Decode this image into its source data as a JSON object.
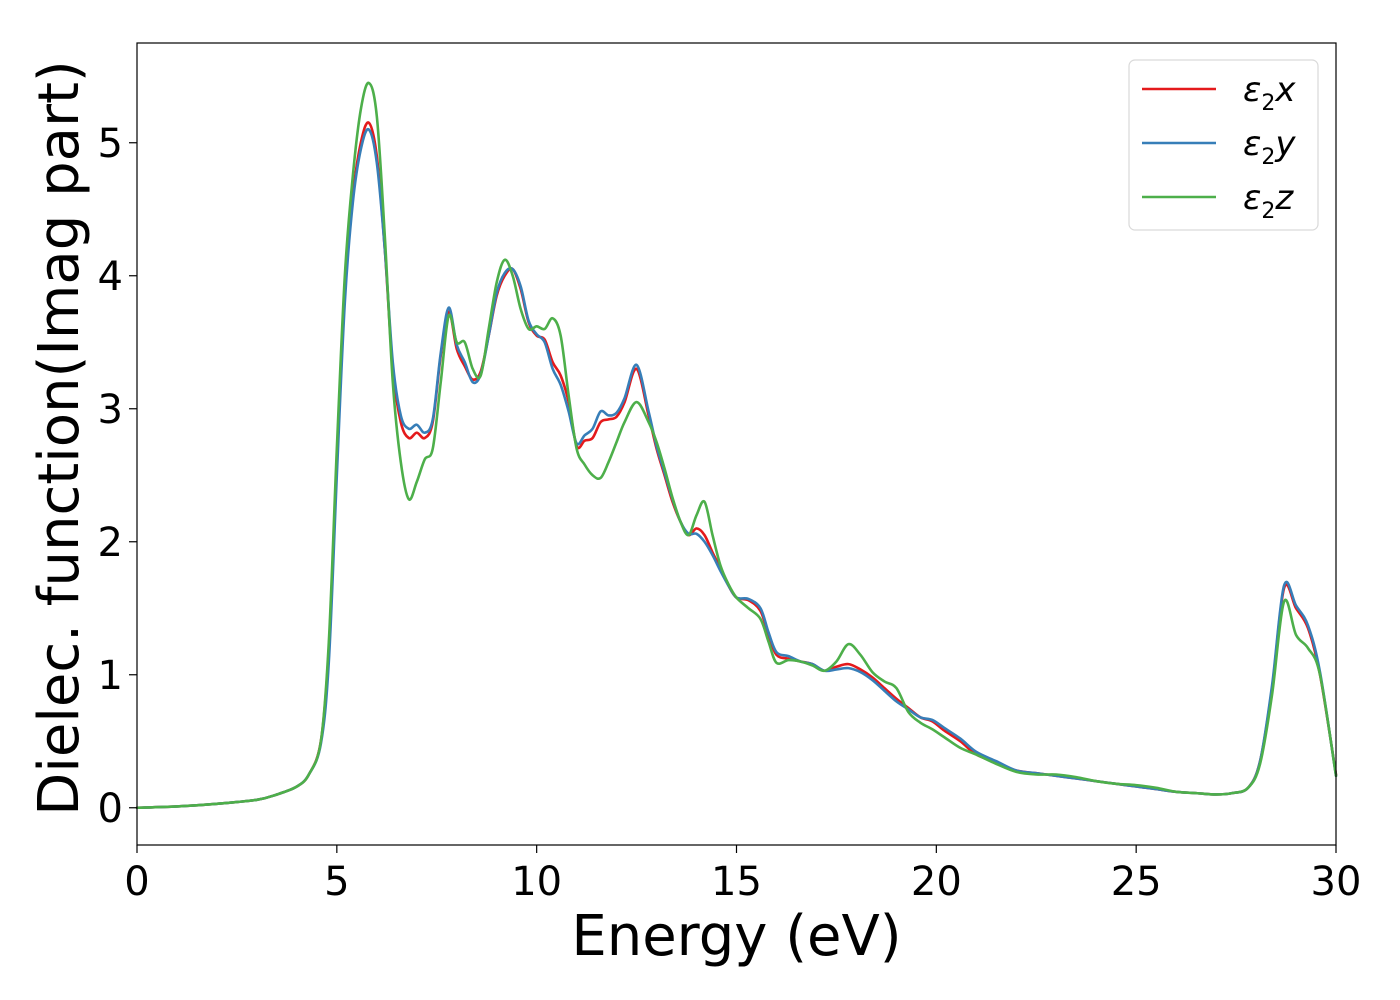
{
  "chart_data": {
    "type": "line",
    "title": "",
    "xlabel": "Energy (eV)",
    "ylabel": "Dielec. function(Imag part)",
    "xlim": [
      0,
      30
    ],
    "ylim": [
      -0.28,
      5.75
    ],
    "xticks": [
      0,
      5,
      10,
      15,
      20,
      25,
      30
    ],
    "yticks": [
      0,
      1,
      2,
      3,
      4,
      5
    ],
    "grid": false,
    "legend_position": "top-right",
    "series": [
      {
        "name": "ε2x",
        "legend": {
          "base": "ε",
          "sub": "2",
          "var": "x"
        },
        "color": "#e41a1c",
        "x": [
          0,
          1,
          2,
          3,
          3.5,
          4,
          4.3,
          4.6,
          4.8,
          5.0,
          5.2,
          5.4,
          5.6,
          5.8,
          6.0,
          6.2,
          6.4,
          6.6,
          6.8,
          7.0,
          7.2,
          7.4,
          7.6,
          7.8,
          8.0,
          8.2,
          8.4,
          8.6,
          8.8,
          9.0,
          9.2,
          9.4,
          9.6,
          9.8,
          10.0,
          10.2,
          10.4,
          10.6,
          10.8,
          11.0,
          11.2,
          11.4,
          11.6,
          11.8,
          12.0,
          12.2,
          12.5,
          12.8,
          13.0,
          13.2,
          13.4,
          13.6,
          13.8,
          14.0,
          14.2,
          14.4,
          14.6,
          14.8,
          15.0,
          15.3,
          15.6,
          15.8,
          16.0,
          16.3,
          16.6,
          16.9,
          17.2,
          17.5,
          17.8,
          18.1,
          18.4,
          18.7,
          19.0,
          19.3,
          19.6,
          19.9,
          20.2,
          20.6,
          21.0,
          21.5,
          22.0,
          22.5,
          23.0,
          23.5,
          24.0,
          24.5,
          25.0,
          25.5,
          26.0,
          26.5,
          27.0,
          27.4,
          27.8,
          28.1,
          28.4,
          28.7,
          29.0,
          29.3,
          29.6,
          30.0
        ],
        "y": [
          0,
          0.01,
          0.03,
          0.06,
          0.1,
          0.16,
          0.25,
          0.5,
          1.2,
          2.6,
          3.9,
          4.6,
          5.0,
          5.15,
          4.9,
          4.2,
          3.3,
          2.9,
          2.78,
          2.82,
          2.78,
          2.9,
          3.4,
          3.73,
          3.45,
          3.32,
          3.22,
          3.28,
          3.55,
          3.85,
          4.0,
          4.05,
          3.9,
          3.65,
          3.55,
          3.52,
          3.35,
          3.25,
          3.05,
          2.72,
          2.76,
          2.78,
          2.9,
          2.92,
          2.94,
          3.05,
          3.3,
          2.95,
          2.7,
          2.5,
          2.3,
          2.15,
          2.05,
          2.1,
          2.05,
          1.92,
          1.8,
          1.67,
          1.58,
          1.56,
          1.48,
          1.3,
          1.15,
          1.12,
          1.1,
          1.08,
          1.03,
          1.06,
          1.08,
          1.04,
          0.98,
          0.9,
          0.82,
          0.75,
          0.68,
          0.65,
          0.58,
          0.5,
          0.4,
          0.34,
          0.28,
          0.26,
          0.24,
          0.22,
          0.2,
          0.18,
          0.16,
          0.14,
          0.12,
          0.11,
          0.1,
          0.11,
          0.15,
          0.35,
          0.9,
          1.65,
          1.5,
          1.35,
          1.0,
          0.25
        ]
      },
      {
        "name": "ε2y",
        "legend": {
          "base": "ε",
          "sub": "2",
          "var": "y"
        },
        "color": "#377eb8",
        "x": [
          0,
          1,
          2,
          3,
          3.5,
          4,
          4.3,
          4.6,
          4.8,
          5.0,
          5.2,
          5.4,
          5.6,
          5.8,
          6.0,
          6.2,
          6.4,
          6.6,
          6.8,
          7.0,
          7.2,
          7.4,
          7.6,
          7.8,
          8.0,
          8.2,
          8.4,
          8.6,
          8.8,
          9.0,
          9.2,
          9.4,
          9.6,
          9.8,
          10.0,
          10.2,
          10.4,
          10.6,
          10.8,
          11.0,
          11.2,
          11.4,
          11.6,
          11.8,
          12.0,
          12.2,
          12.5,
          12.8,
          13.0,
          13.2,
          13.4,
          13.6,
          13.8,
          14.0,
          14.2,
          14.4,
          14.6,
          14.8,
          15.0,
          15.3,
          15.6,
          15.8,
          16.0,
          16.3,
          16.6,
          16.9,
          17.2,
          17.5,
          17.8,
          18.1,
          18.4,
          18.7,
          19.0,
          19.3,
          19.6,
          19.9,
          20.2,
          20.6,
          21.0,
          21.5,
          22.0,
          22.5,
          23.0,
          23.5,
          24.0,
          24.5,
          25.0,
          25.5,
          26.0,
          26.5,
          27.0,
          27.4,
          27.8,
          28.1,
          28.4,
          28.7,
          29.0,
          29.3,
          29.6,
          30.0
        ],
        "y": [
          0,
          0.01,
          0.03,
          0.06,
          0.1,
          0.16,
          0.25,
          0.48,
          1.1,
          2.5,
          3.8,
          4.55,
          4.95,
          5.1,
          4.85,
          4.2,
          3.35,
          2.95,
          2.85,
          2.88,
          2.82,
          2.92,
          3.42,
          3.76,
          3.48,
          3.35,
          3.2,
          3.26,
          3.55,
          3.87,
          4.02,
          4.05,
          3.92,
          3.66,
          3.56,
          3.5,
          3.3,
          3.18,
          2.98,
          2.74,
          2.8,
          2.85,
          2.98,
          2.95,
          2.97,
          3.08,
          3.33,
          2.98,
          2.72,
          2.52,
          2.32,
          2.15,
          2.06,
          2.06,
          2.0,
          1.9,
          1.78,
          1.67,
          1.58,
          1.57,
          1.5,
          1.32,
          1.17,
          1.14,
          1.1,
          1.08,
          1.03,
          1.04,
          1.05,
          1.02,
          0.96,
          0.88,
          0.8,
          0.74,
          0.68,
          0.66,
          0.6,
          0.52,
          0.42,
          0.35,
          0.28,
          0.26,
          0.24,
          0.22,
          0.2,
          0.18,
          0.16,
          0.14,
          0.12,
          0.11,
          0.1,
          0.11,
          0.15,
          0.35,
          0.92,
          1.67,
          1.52,
          1.37,
          1.02,
          0.24
        ]
      },
      {
        "name": "ε2z",
        "legend": {
          "base": "ε",
          "sub": "2",
          "var": "z"
        },
        "color": "#4daf4a",
        "x": [
          0,
          1,
          2,
          3,
          3.5,
          4,
          4.3,
          4.6,
          4.8,
          5.0,
          5.2,
          5.4,
          5.6,
          5.8,
          6.0,
          6.2,
          6.4,
          6.6,
          6.8,
          7.0,
          7.2,
          7.4,
          7.6,
          7.8,
          8.0,
          8.2,
          8.4,
          8.6,
          8.8,
          9.0,
          9.2,
          9.4,
          9.6,
          9.8,
          10.0,
          10.2,
          10.4,
          10.6,
          10.8,
          11.0,
          11.2,
          11.4,
          11.6,
          11.8,
          12.0,
          12.2,
          12.5,
          12.8,
          13.0,
          13.2,
          13.4,
          13.6,
          13.8,
          14.0,
          14.2,
          14.4,
          14.6,
          14.8,
          15.0,
          15.3,
          15.6,
          15.8,
          16.0,
          16.3,
          16.6,
          16.9,
          17.2,
          17.5,
          17.8,
          18.1,
          18.4,
          18.7,
          19.0,
          19.3,
          19.6,
          19.9,
          20.2,
          20.6,
          21.0,
          21.5,
          22.0,
          22.5,
          23.0,
          23.5,
          24.0,
          24.5,
          25.0,
          25.5,
          26.0,
          26.5,
          27.0,
          27.4,
          27.8,
          28.1,
          28.4,
          28.7,
          29.0,
          29.3,
          29.6,
          30.0
        ],
        "y": [
          0,
          0.01,
          0.03,
          0.06,
          0.1,
          0.16,
          0.25,
          0.5,
          1.25,
          2.7,
          4.0,
          4.75,
          5.25,
          5.45,
          5.2,
          4.3,
          3.2,
          2.6,
          2.32,
          2.45,
          2.62,
          2.7,
          3.2,
          3.7,
          3.5,
          3.5,
          3.3,
          3.25,
          3.6,
          3.95,
          4.12,
          4.0,
          3.75,
          3.6,
          3.62,
          3.6,
          3.68,
          3.55,
          3.1,
          2.7,
          2.58,
          2.5,
          2.48,
          2.6,
          2.75,
          2.9,
          3.05,
          2.9,
          2.75,
          2.55,
          2.33,
          2.15,
          2.05,
          2.2,
          2.3,
          2.05,
          1.82,
          1.68,
          1.58,
          1.5,
          1.42,
          1.25,
          1.09,
          1.11,
          1.1,
          1.07,
          1.03,
          1.1,
          1.23,
          1.15,
          1.02,
          0.95,
          0.9,
          0.72,
          0.64,
          0.59,
          0.53,
          0.45,
          0.4,
          0.33,
          0.27,
          0.25,
          0.25,
          0.23,
          0.2,
          0.18,
          0.17,
          0.15,
          0.12,
          0.11,
          0.1,
          0.11,
          0.15,
          0.33,
          0.85,
          1.55,
          1.3,
          1.2,
          1.0,
          0.24
        ]
      }
    ]
  }
}
